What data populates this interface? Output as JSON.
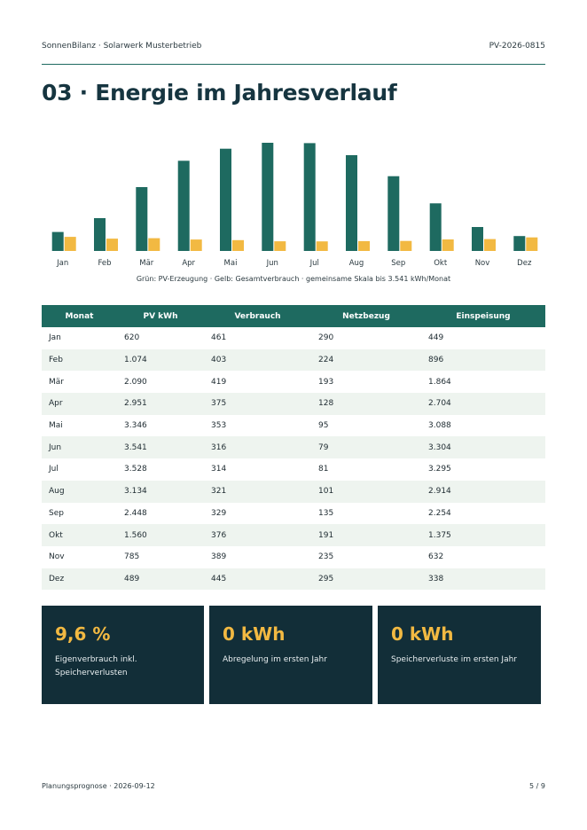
{
  "header": {
    "brand": "SonnenBilanz · Solarwerk Musterbetrieb",
    "doc_id": "PV-2026-0815"
  },
  "page_title": "03 · Energie im Jahresverlauf",
  "colors": {
    "pv": "#1e6a60",
    "consumption": "#f2b942",
    "kpi_bg": "#122e38"
  },
  "chart_data": {
    "type": "bar",
    "categories": [
      "Jan",
      "Feb",
      "Mär",
      "Apr",
      "Mai",
      "Jun",
      "Jul",
      "Aug",
      "Sep",
      "Okt",
      "Nov",
      "Dez"
    ],
    "series": [
      {
        "values": [
          620,
          1074,
          2090,
          2951,
          3346,
          3541,
          3528,
          3134,
          2448,
          1560,
          785,
          489
        ],
        "color": "#1e6a60"
      },
      {
        "values": [
          461,
          403,
          419,
          375,
          353,
          316,
          314,
          321,
          329,
          376,
          389,
          445
        ],
        "color": "#f2b942"
      }
    ],
    "ylim": [
      0,
      3541
    ],
    "caption": "Grün: PV-Erzeugung · Gelb: Gesamtverbrauch · gemeinsame Skala bis 3.541 kWh/Monat"
  },
  "table": {
    "headers": [
      "Monat",
      "PV kWh",
      "Verbrauch",
      "Netzbezug",
      "Einspeisung"
    ],
    "rows": [
      [
        "Jan",
        "620",
        "461",
        "290",
        "449"
      ],
      [
        "Feb",
        "1.074",
        "403",
        "224",
        "896"
      ],
      [
        "Mär",
        "2.090",
        "419",
        "193",
        "1.864"
      ],
      [
        "Apr",
        "2.951",
        "375",
        "128",
        "2.704"
      ],
      [
        "Mai",
        "3.346",
        "353",
        "95",
        "3.088"
      ],
      [
        "Jun",
        "3.541",
        "316",
        "79",
        "3.304"
      ],
      [
        "Jul",
        "3.528",
        "314",
        "81",
        "3.295"
      ],
      [
        "Aug",
        "3.134",
        "321",
        "101",
        "2.914"
      ],
      [
        "Sep",
        "2.448",
        "329",
        "135",
        "2.254"
      ],
      [
        "Okt",
        "1.560",
        "376",
        "191",
        "1.375"
      ],
      [
        "Nov",
        "785",
        "389",
        "235",
        "632"
      ],
      [
        "Dez",
        "489",
        "445",
        "295",
        "338"
      ]
    ]
  },
  "kpis": [
    {
      "value": "9,6 %",
      "label": "Eigenverbrauch inkl. Speicherverlusten"
    },
    {
      "value": "0 kWh",
      "label": "Abregelung im ersten Jahr"
    },
    {
      "value": "0 kWh",
      "label": "Speicherverluste im ersten Jahr"
    }
  ],
  "footer": {
    "left": "Planungsprognose · 2026-09-12",
    "right": "5 / 9"
  }
}
